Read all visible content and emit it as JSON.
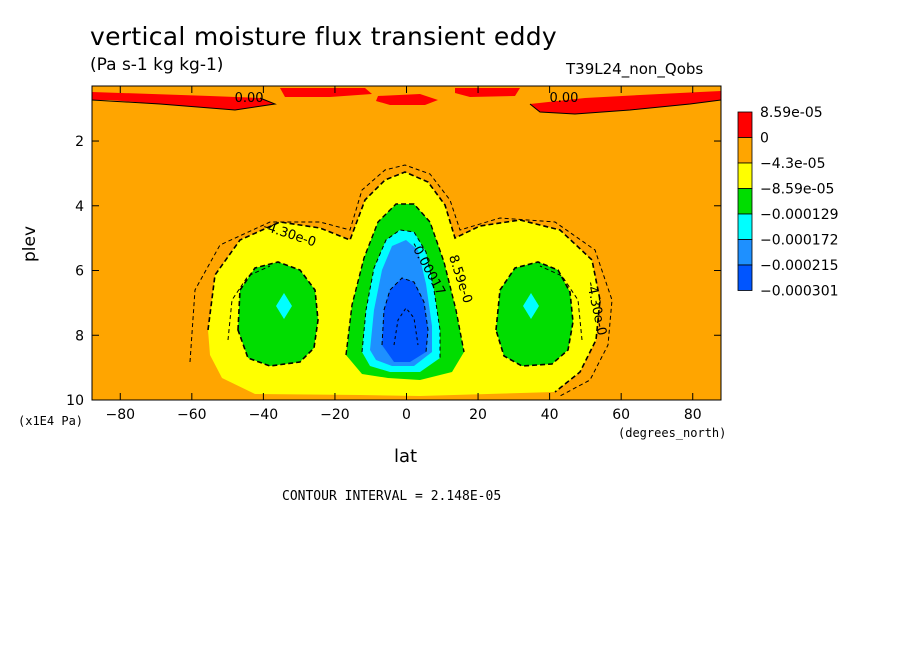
{
  "chart_data": {
    "type": "contour",
    "title": "vertical moisture flux transient eddy",
    "units": "(Pa s-1 kg kg-1)",
    "run_label": "T39L24_non_Qobs",
    "xlabel": "lat",
    "x_units": "(degrees_north)",
    "ylabel": "plev",
    "y_scale_note": "(x1E4 Pa)",
    "x_ticks": [
      "-80",
      "-60",
      "-40",
      "-20",
      "0",
      "20",
      "40",
      "60",
      "80"
    ],
    "x_tick_values": [
      -80,
      -60,
      -40,
      -20,
      0,
      20,
      40,
      60,
      80
    ],
    "y_ticks": [
      "2",
      "4",
      "6",
      "8",
      "10"
    ],
    "y_tick_values": [
      2,
      4,
      6,
      8,
      10
    ],
    "xlim": [
      -87.9,
      87.9
    ],
    "ylim": [
      10,
      0.3
    ],
    "contour_interval_label": "CONTOUR INTERVAL = 2.148E-05",
    "legend": {
      "levels": [
        {
          "label": "8.59e-05",
          "color": "#ff0000"
        },
        {
          "label": "0",
          "color": "#ffa500"
        },
        {
          "label": "−4.3e-05",
          "color": "#ffff00"
        },
        {
          "label": "−8.59e-05",
          "color": "#00dd00"
        },
        {
          "label": "−0.000129",
          "color": "#00ffff"
        },
        {
          "label": "−0.000172",
          "color": "#1e90ff"
        },
        {
          "label": "−0.000215",
          "color": "#0055ff"
        },
        {
          "label": "−0.000301",
          "color": "#ffffff"
        }
      ]
    },
    "contour_labels": [
      {
        "text": "0.00",
        "lat": -44,
        "plev": 0.8
      },
      {
        "text": "0.00",
        "lat": 44,
        "plev": 0.8
      },
      {
        "text": "-4.30e-0",
        "lat": -33,
        "plev": 5.0
      },
      {
        "text": "-0.00017",
        "lat": 5,
        "plev": 6.0
      },
      {
        "text": "8.59e-0",
        "lat": 14,
        "plev": 6.3
      },
      {
        "text": "-4.30e-0",
        "lat": 52,
        "plev": 7.2
      }
    ]
  }
}
